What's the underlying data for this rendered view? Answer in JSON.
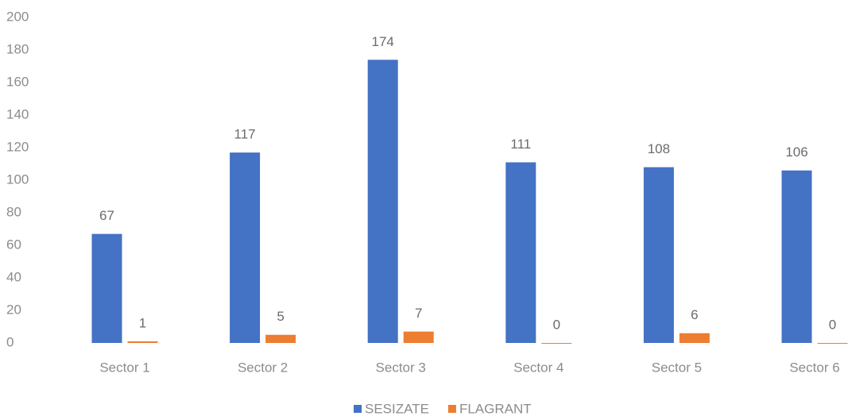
{
  "chart_data": {
    "type": "bar",
    "categories": [
      "Sector 1",
      "Sector 2",
      "Sector 3",
      "Sector 4",
      "Sector 5",
      "Sector 6"
    ],
    "series": [
      {
        "name": "SESIZATE",
        "color": "#4472c4",
        "values": [
          67,
          117,
          174,
          111,
          108,
          106
        ]
      },
      {
        "name": "FLAGRANT",
        "color": "#ed7d31",
        "values": [
          1,
          5,
          7,
          0,
          6,
          0
        ]
      }
    ],
    "ylim": [
      0,
      200
    ],
    "yticks": [
      0,
      20,
      40,
      60,
      80,
      100,
      120,
      140,
      160,
      180,
      200
    ],
    "grid": false,
    "legend": "bottom",
    "data_labels": true
  }
}
